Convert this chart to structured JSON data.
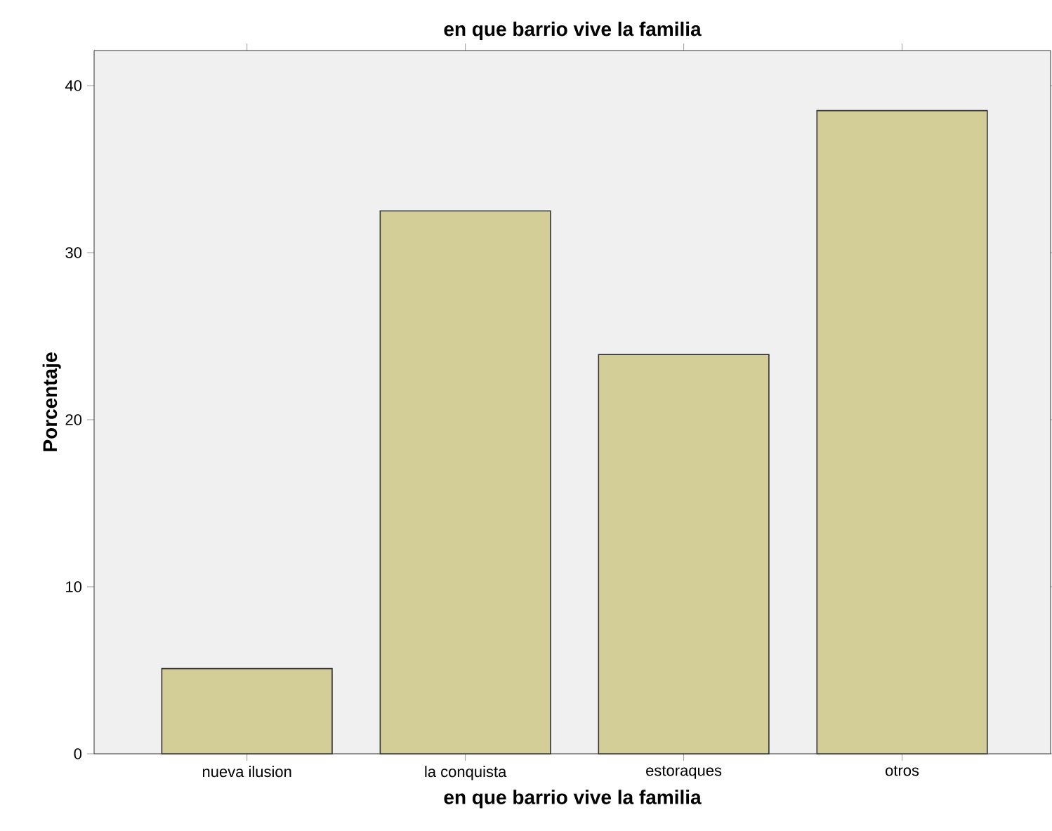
{
  "chart_data": {
    "type": "bar",
    "title": "en que barrio vive la familia",
    "xlabel": "en que barrio vive la familia",
    "ylabel": "Porcentaje",
    "categories": [
      "nueva ilusion",
      "la conquista",
      "estoraques",
      "otros"
    ],
    "values": [
      5.1,
      32.5,
      23.9,
      38.5
    ],
    "color": "#d3ce97",
    "ylim": [
      0,
      42.1
    ],
    "yticks": [
      0,
      10,
      20,
      30,
      40
    ]
  }
}
